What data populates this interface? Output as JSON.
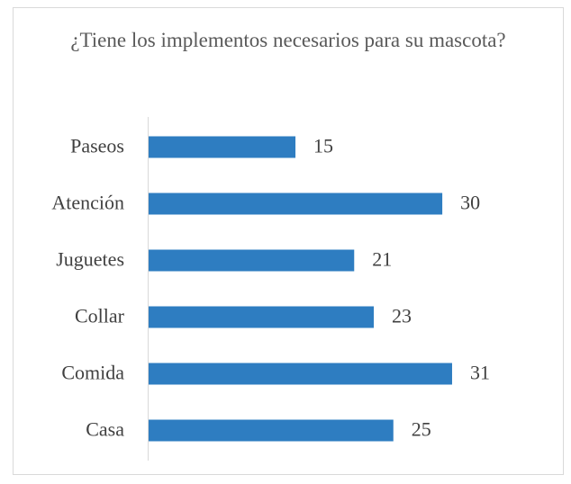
{
  "chart_data": {
    "type": "bar",
    "orientation": "horizontal",
    "title": "¿Tiene los implementos necesarios para su mascota?",
    "categories": [
      "Paseos",
      "Atención",
      "Juguetes",
      "Collar",
      "Comida",
      "Casa"
    ],
    "values": [
      15,
      30,
      21,
      23,
      31,
      25
    ],
    "color": "#2e7dc1"
  }
}
